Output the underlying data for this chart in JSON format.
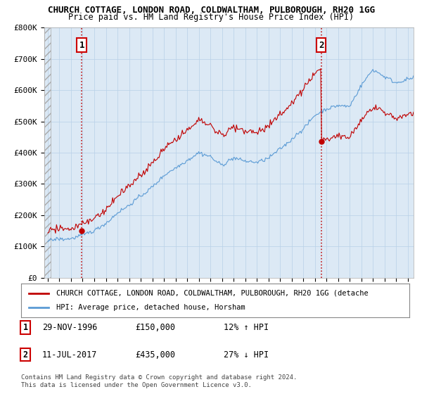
{
  "title": "CHURCH COTTAGE, LONDON ROAD, COLDWALTHAM, PULBOROUGH, RH20 1GG",
  "subtitle": "Price paid vs. HM Land Registry's House Price Index (HPI)",
  "ylim": [
    0,
    800000
  ],
  "yticks": [
    0,
    100000,
    200000,
    300000,
    400000,
    500000,
    600000,
    700000,
    800000
  ],
  "ytick_labels": [
    "£0",
    "£100K",
    "£200K",
    "£300K",
    "£400K",
    "£500K",
    "£600K",
    "£700K",
    "£800K"
  ],
  "xlim_start": 1993.7,
  "xlim_end": 2025.5,
  "hpi_color": "#5b9bd5",
  "price_color": "#c00000",
  "plot_bg_color": "#dce9f5",
  "grid_color": "#b8d0e8",
  "transaction1": {
    "year": 1996.92,
    "price": 150000,
    "label": "1",
    "date": "29-NOV-1996",
    "amount": "£150,000",
    "note": "12% ↑ HPI"
  },
  "transaction2": {
    "year": 2017.54,
    "price": 435000,
    "label": "2",
    "date": "11-JUL-2017",
    "amount": "£435,000",
    "note": "27% ↓ HPI"
  },
  "legend_line1": "CHURCH COTTAGE, LONDON ROAD, COLDWALTHAM, PULBOROUGH, RH20 1GG (detache",
  "legend_line2": "HPI: Average price, detached house, Horsham",
  "footer1": "Contains HM Land Registry data © Crown copyright and database right 2024.",
  "footer2": "This data is licensed under the Open Government Licence v3.0.",
  "background_color": "#ffffff"
}
